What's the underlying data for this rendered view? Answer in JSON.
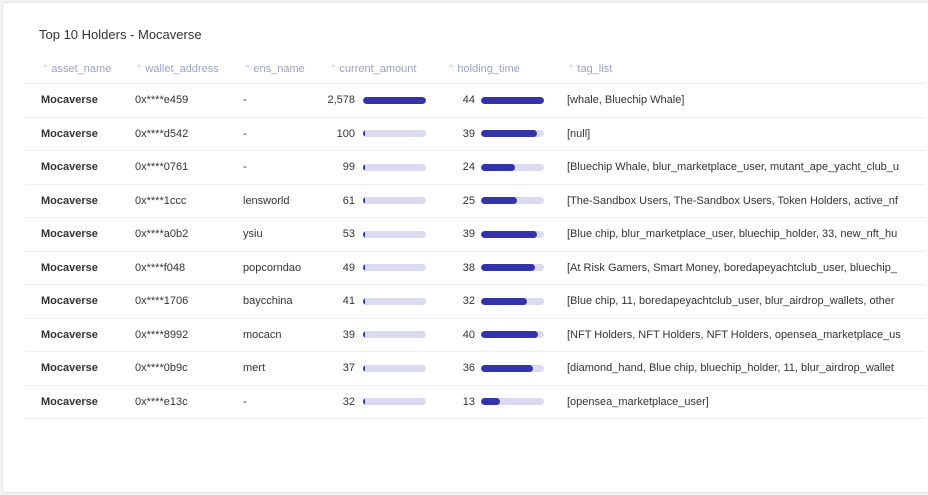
{
  "title": "Top 10 Holders - Mocaverse",
  "columns": {
    "asset_name": "asset_name",
    "wallet_address": "wallet_address",
    "ens_name": "ens_name",
    "current_amount": "current_amount",
    "holding_time": "holding_time",
    "tag_list": "tag_list"
  },
  "colors": {
    "bar_fill": "#3333aa",
    "bar_track": "#dadbf0",
    "header_text": "#9aa3c4"
  },
  "amount_max": 2578,
  "holding_max": 44,
  "rows": [
    {
      "asset_name": "Mocaverse",
      "wallet_address": "0x****e459",
      "ens_name": "-",
      "current_amount": "2,578",
      "amount_value": 2578,
      "holding_time": "44",
      "holding_value": 44,
      "tag_list": "[whale, Bluechip Whale]"
    },
    {
      "asset_name": "Mocaverse",
      "wallet_address": "0x****d542",
      "ens_name": "-",
      "current_amount": "100",
      "amount_value": 100,
      "holding_time": "39",
      "holding_value": 39,
      "tag_list": "[null]"
    },
    {
      "asset_name": "Mocaverse",
      "wallet_address": "0x****0761",
      "ens_name": "-",
      "current_amount": "99",
      "amount_value": 99,
      "holding_time": "24",
      "holding_value": 24,
      "tag_list": "[Bluechip Whale, blur_marketplace_user, mutant_ape_yacht_club_u"
    },
    {
      "asset_name": "Mocaverse",
      "wallet_address": "0x****1ccc",
      "ens_name": "lensworld",
      "current_amount": "61",
      "amount_value": 61,
      "holding_time": "25",
      "holding_value": 25,
      "tag_list": "[The-Sandbox Users, The-Sandbox Users, Token Holders, active_nf"
    },
    {
      "asset_name": "Mocaverse",
      "wallet_address": "0x****a0b2",
      "ens_name": "ysiu",
      "current_amount": "53",
      "amount_value": 53,
      "holding_time": "39",
      "holding_value": 39,
      "tag_list": "[Blue chip, blur_marketplace_user, bluechip_holder, 33, new_nft_hu"
    },
    {
      "asset_name": "Mocaverse",
      "wallet_address": "0x****f048",
      "ens_name": "popcorndao",
      "current_amount": "49",
      "amount_value": 49,
      "holding_time": "38",
      "holding_value": 38,
      "tag_list": "[At Risk Gamers, Smart Money, boredapeyachtclub_user, bluechip_"
    },
    {
      "asset_name": "Mocaverse",
      "wallet_address": "0x****1706",
      "ens_name": "baycchina",
      "current_amount": "41",
      "amount_value": 41,
      "holding_time": "32",
      "holding_value": 32,
      "tag_list": "[Blue chip, 11, boredapeyachtclub_user, blur_airdrop_wallets, other"
    },
    {
      "asset_name": "Mocaverse",
      "wallet_address": "0x****8992",
      "ens_name": "mocacn",
      "current_amount": "39",
      "amount_value": 39,
      "holding_time": "40",
      "holding_value": 40,
      "tag_list": "[NFT Holders, NFT Holders, NFT Holders, opensea_marketplace_us"
    },
    {
      "asset_name": "Mocaverse",
      "wallet_address": "0x****0b9c",
      "ens_name": "mert",
      "current_amount": "37",
      "amount_value": 37,
      "holding_time": "36",
      "holding_value": 36,
      "tag_list": "[diamond_hand, Blue chip, bluechip_holder, 11, blur_airdrop_wallet"
    },
    {
      "asset_name": "Mocaverse",
      "wallet_address": "0x****e13c",
      "ens_name": "-",
      "current_amount": "32",
      "amount_value": 32,
      "holding_time": "13",
      "holding_value": 13,
      "tag_list": "[opensea_marketplace_user]"
    }
  ]
}
